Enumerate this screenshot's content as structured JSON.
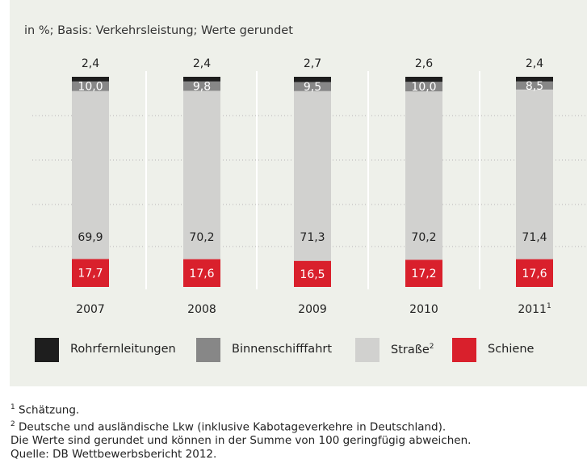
{
  "subtitle": "in %; Basis: Verkehrsleistung; Werte gerundet",
  "chart_data": {
    "type": "bar",
    "stacked": true,
    "categories": [
      "2007",
      "2008",
      "2009",
      "2010",
      "2011"
    ],
    "category_superscripts": [
      "",
      "",
      "",
      "",
      "1"
    ],
    "series": [
      {
        "name": "Schiene",
        "color": "#d9202c",
        "values": [
          17.7,
          17.6,
          16.5,
          17.2,
          17.6
        ],
        "labels": [
          "17,7",
          "17,6",
          "16,5",
          "17,2",
          "17,6"
        ]
      },
      {
        "name": "Straße",
        "superscript": "2",
        "color": "#d1d1cf",
        "values": [
          69.9,
          70.2,
          71.3,
          70.2,
          71.4
        ],
        "labels": [
          "69,9",
          "70,2",
          "71,3",
          "70,2",
          "71,4"
        ]
      },
      {
        "name": "Binnenschifffahrt",
        "color": "#878787",
        "values": [
          10.0,
          9.8,
          9.5,
          10.0,
          8.5
        ],
        "labels": [
          "10,0",
          "9,8",
          "9,5",
          "10,0",
          "8,5"
        ]
      },
      {
        "name": "Rohrfernleitungen",
        "color": "#1e1e1e",
        "values": [
          2.4,
          2.4,
          2.7,
          2.6,
          2.4
        ],
        "labels": [
          "2,4",
          "2,4",
          "2,7",
          "2,6",
          "2,4"
        ]
      }
    ],
    "ylim": [
      0,
      100
    ],
    "grid": "dotted horizontal",
    "legend_position": "bottom",
    "legend_order": [
      "Rohrfernleitungen",
      "Binnenschifffahrt",
      "Straße",
      "Schiene"
    ]
  },
  "footnotes": [
    {
      "sup": "1",
      "text": " Schätzung."
    },
    {
      "sup": "2",
      "text": " Deutsche und ausländische Lkw (inklusive Kabotageverkehre in Deutschland)."
    },
    {
      "sup": "",
      "text": "Die Werte sind gerundet und können in der Summe von 100 geringfügig abweichen."
    },
    {
      "sup": "",
      "text": "Quelle: DB Wettbewerbsbericht 2012."
    }
  ]
}
